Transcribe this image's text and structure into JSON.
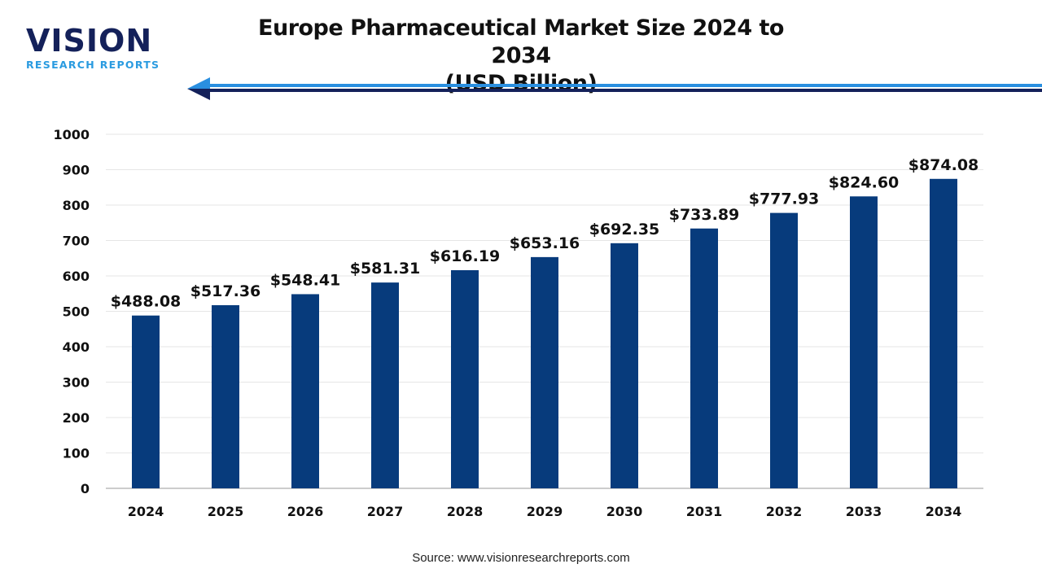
{
  "logo": {
    "brand": "VISION",
    "sub": "RESEARCH REPORTS"
  },
  "title_line1": "Europe Pharmaceutical Market Size 2024 to 2034",
  "title_line2": "(USD Billion)",
  "source": "Source: www.visionresearchreports.com",
  "colors": {
    "bar": "#073b7c",
    "arrow_light": "#2a8fe0",
    "arrow_dark": "#14215a"
  },
  "chart_data": {
    "type": "bar",
    "title": "Europe Pharmaceutical Market Size 2024 to 2034 (USD Billion)",
    "categories": [
      "2024",
      "2025",
      "2026",
      "2027",
      "2028",
      "2029",
      "2030",
      "2031",
      "2032",
      "2033",
      "2034"
    ],
    "values": [
      488.08,
      517.36,
      548.41,
      581.31,
      616.19,
      653.16,
      692.35,
      733.89,
      777.93,
      824.6,
      874.08
    ],
    "data_labels": [
      "$488.08",
      "$517.36",
      "$548.41",
      "$581.31",
      "$616.19",
      "$653.16",
      "$692.35",
      "$733.89",
      "$777.93",
      "$824.60",
      "$874.08"
    ],
    "yticks": [
      0,
      100,
      200,
      300,
      400,
      500,
      600,
      700,
      800,
      900,
      1000
    ],
    "ylim": [
      0,
      1000
    ],
    "grid": true,
    "xlabel": "",
    "ylabel": ""
  }
}
